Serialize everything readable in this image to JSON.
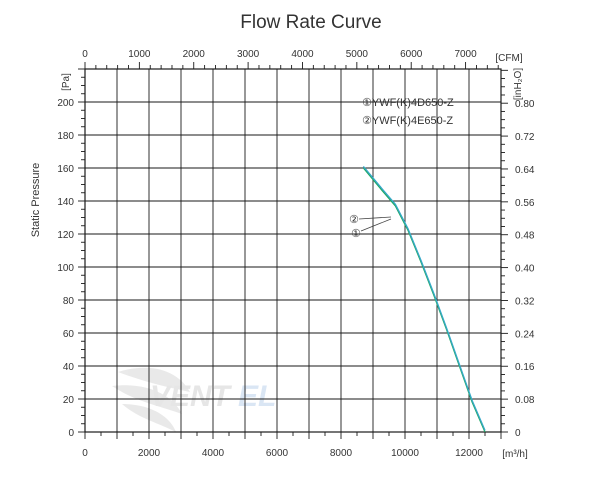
{
  "chart_data": {
    "type": "line",
    "title": "Flow Rate Curve",
    "ylabel": "Static Pressure",
    "y_unit": "[Pa]",
    "y2_unit": "[inH₂O]",
    "x_unit": "[m³/h]",
    "x2_unit": "[CFM]",
    "xlim": [
      0,
      13000
    ],
    "ylim": [
      0,
      220
    ],
    "x_ticks": [
      "0",
      "2000",
      "4000",
      "6000",
      "8000",
      "10000",
      "12000"
    ],
    "x_tick_values": [
      0,
      2000,
      4000,
      6000,
      8000,
      10000,
      12000
    ],
    "x2_ticks": [
      "0",
      "1000",
      "2000",
      "3000",
      "4000",
      "5000",
      "6000",
      "7000"
    ],
    "x2_tick_values": [
      0,
      1000,
      2000,
      3000,
      4000,
      5000,
      6000,
      7000
    ],
    "y_ticks": [
      "0",
      "20",
      "40",
      "60",
      "80",
      "100",
      "120",
      "140",
      "160",
      "180",
      "200"
    ],
    "y_tick_values": [
      0,
      20,
      40,
      60,
      80,
      100,
      120,
      140,
      160,
      180,
      200
    ],
    "y2_ticks": [
      "0",
      "0.08",
      "0.16",
      "0.24",
      "0.32",
      "0.40",
      "0.48",
      "0.56",
      "0.64",
      "0.72",
      "0.80"
    ],
    "y2_tick_values": [
      0,
      0.08,
      0.16,
      0.24,
      0.32,
      0.4,
      0.48,
      0.56,
      0.64,
      0.72,
      0.8
    ],
    "grid": true,
    "legend": [
      "①YWF(K)4D650-Z",
      "②YWF(K)4E650-Z"
    ],
    "callouts": [
      "②",
      "①"
    ],
    "series": [
      {
        "marker": "①",
        "color": "#1fa860",
        "x": [
          8700,
          9300,
          9700,
          10100,
          10500,
          10900,
          11300,
          11700,
          12100,
          12500
        ],
        "y": [
          160,
          146,
          137,
          122,
          103,
          83,
          62,
          40,
          18,
          0
        ]
      },
      {
        "marker": "②",
        "color": "#36a8c8",
        "x": [
          8700,
          9300,
          9700,
          10100,
          10500,
          10900,
          11300,
          11700,
          12100,
          12500
        ],
        "y": [
          161,
          147,
          138,
          123,
          104,
          84,
          63,
          41,
          19,
          1
        ]
      }
    ]
  }
}
